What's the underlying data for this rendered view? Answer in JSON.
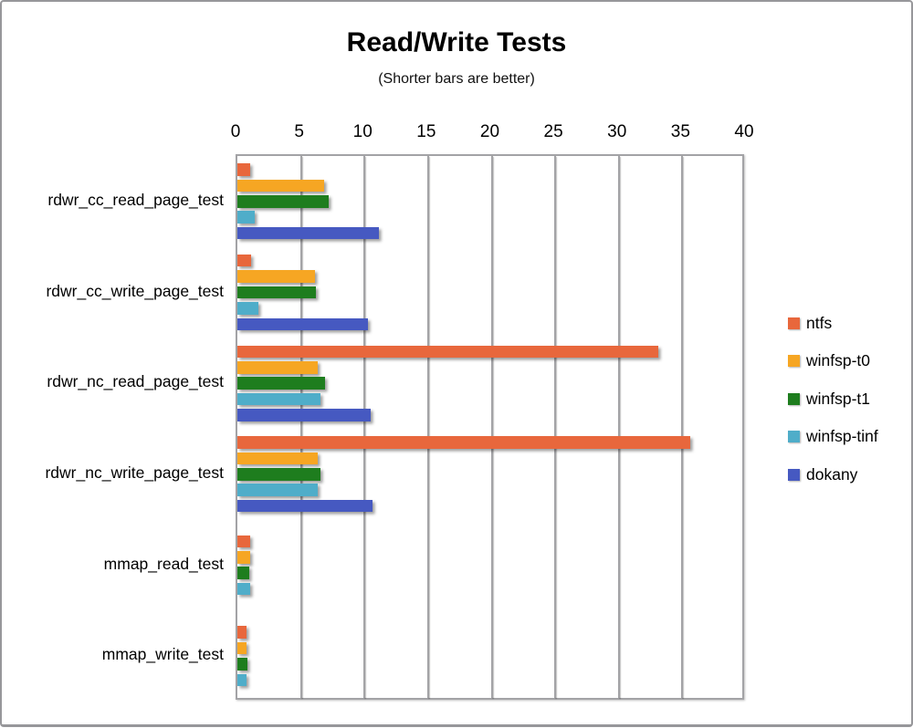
{
  "header": {
    "title": "Read/Write Tests",
    "subtitle": "(Shorter bars are better)"
  },
  "colors": {
    "gridline": "#a3a3a6",
    "plot_border": "#a3a3a6",
    "frame_border": "#97979a",
    "background": "#ffffff",
    "text": "#000000"
  },
  "chart_data": {
    "type": "bar",
    "orientation": "horizontal",
    "title": "Read/Write Tests",
    "subtitle": "(Shorter bars are better)",
    "categories": [
      "rdwr_cc_read_page_test",
      "rdwr_cc_write_page_test",
      "rdwr_nc_read_page_test",
      "rdwr_nc_write_page_test",
      "mmap_read_test",
      "mmap_write_test"
    ],
    "series": [
      {
        "name": "ntfs",
        "color": "#e8673c",
        "values": [
          1.0,
          1.1,
          33.1,
          35.6,
          1.0,
          0.7
        ]
      },
      {
        "name": "winfsp-t0",
        "color": "#f6a623",
        "values": [
          6.8,
          6.1,
          6.3,
          6.3,
          1.0,
          0.75
        ]
      },
      {
        "name": "winfsp-t1",
        "color": "#1e7d1e",
        "values": [
          7.2,
          6.2,
          6.9,
          6.5,
          0.95,
          0.8
        ]
      },
      {
        "name": "winfsp-tinf",
        "color": "#4fadc9",
        "values": [
          1.4,
          1.65,
          6.5,
          6.3,
          1.0,
          0.75
        ]
      },
      {
        "name": "dokany",
        "color": "#4659c1",
        "values": [
          11.1,
          10.3,
          10.5,
          10.6,
          null,
          null
        ]
      }
    ],
    "xlim": [
      0,
      40
    ],
    "xticks": [
      0,
      5,
      10,
      15,
      20,
      25,
      30,
      35,
      40
    ],
    "grid": true,
    "legend_position": "right",
    "bars_start_at_zero": true
  }
}
